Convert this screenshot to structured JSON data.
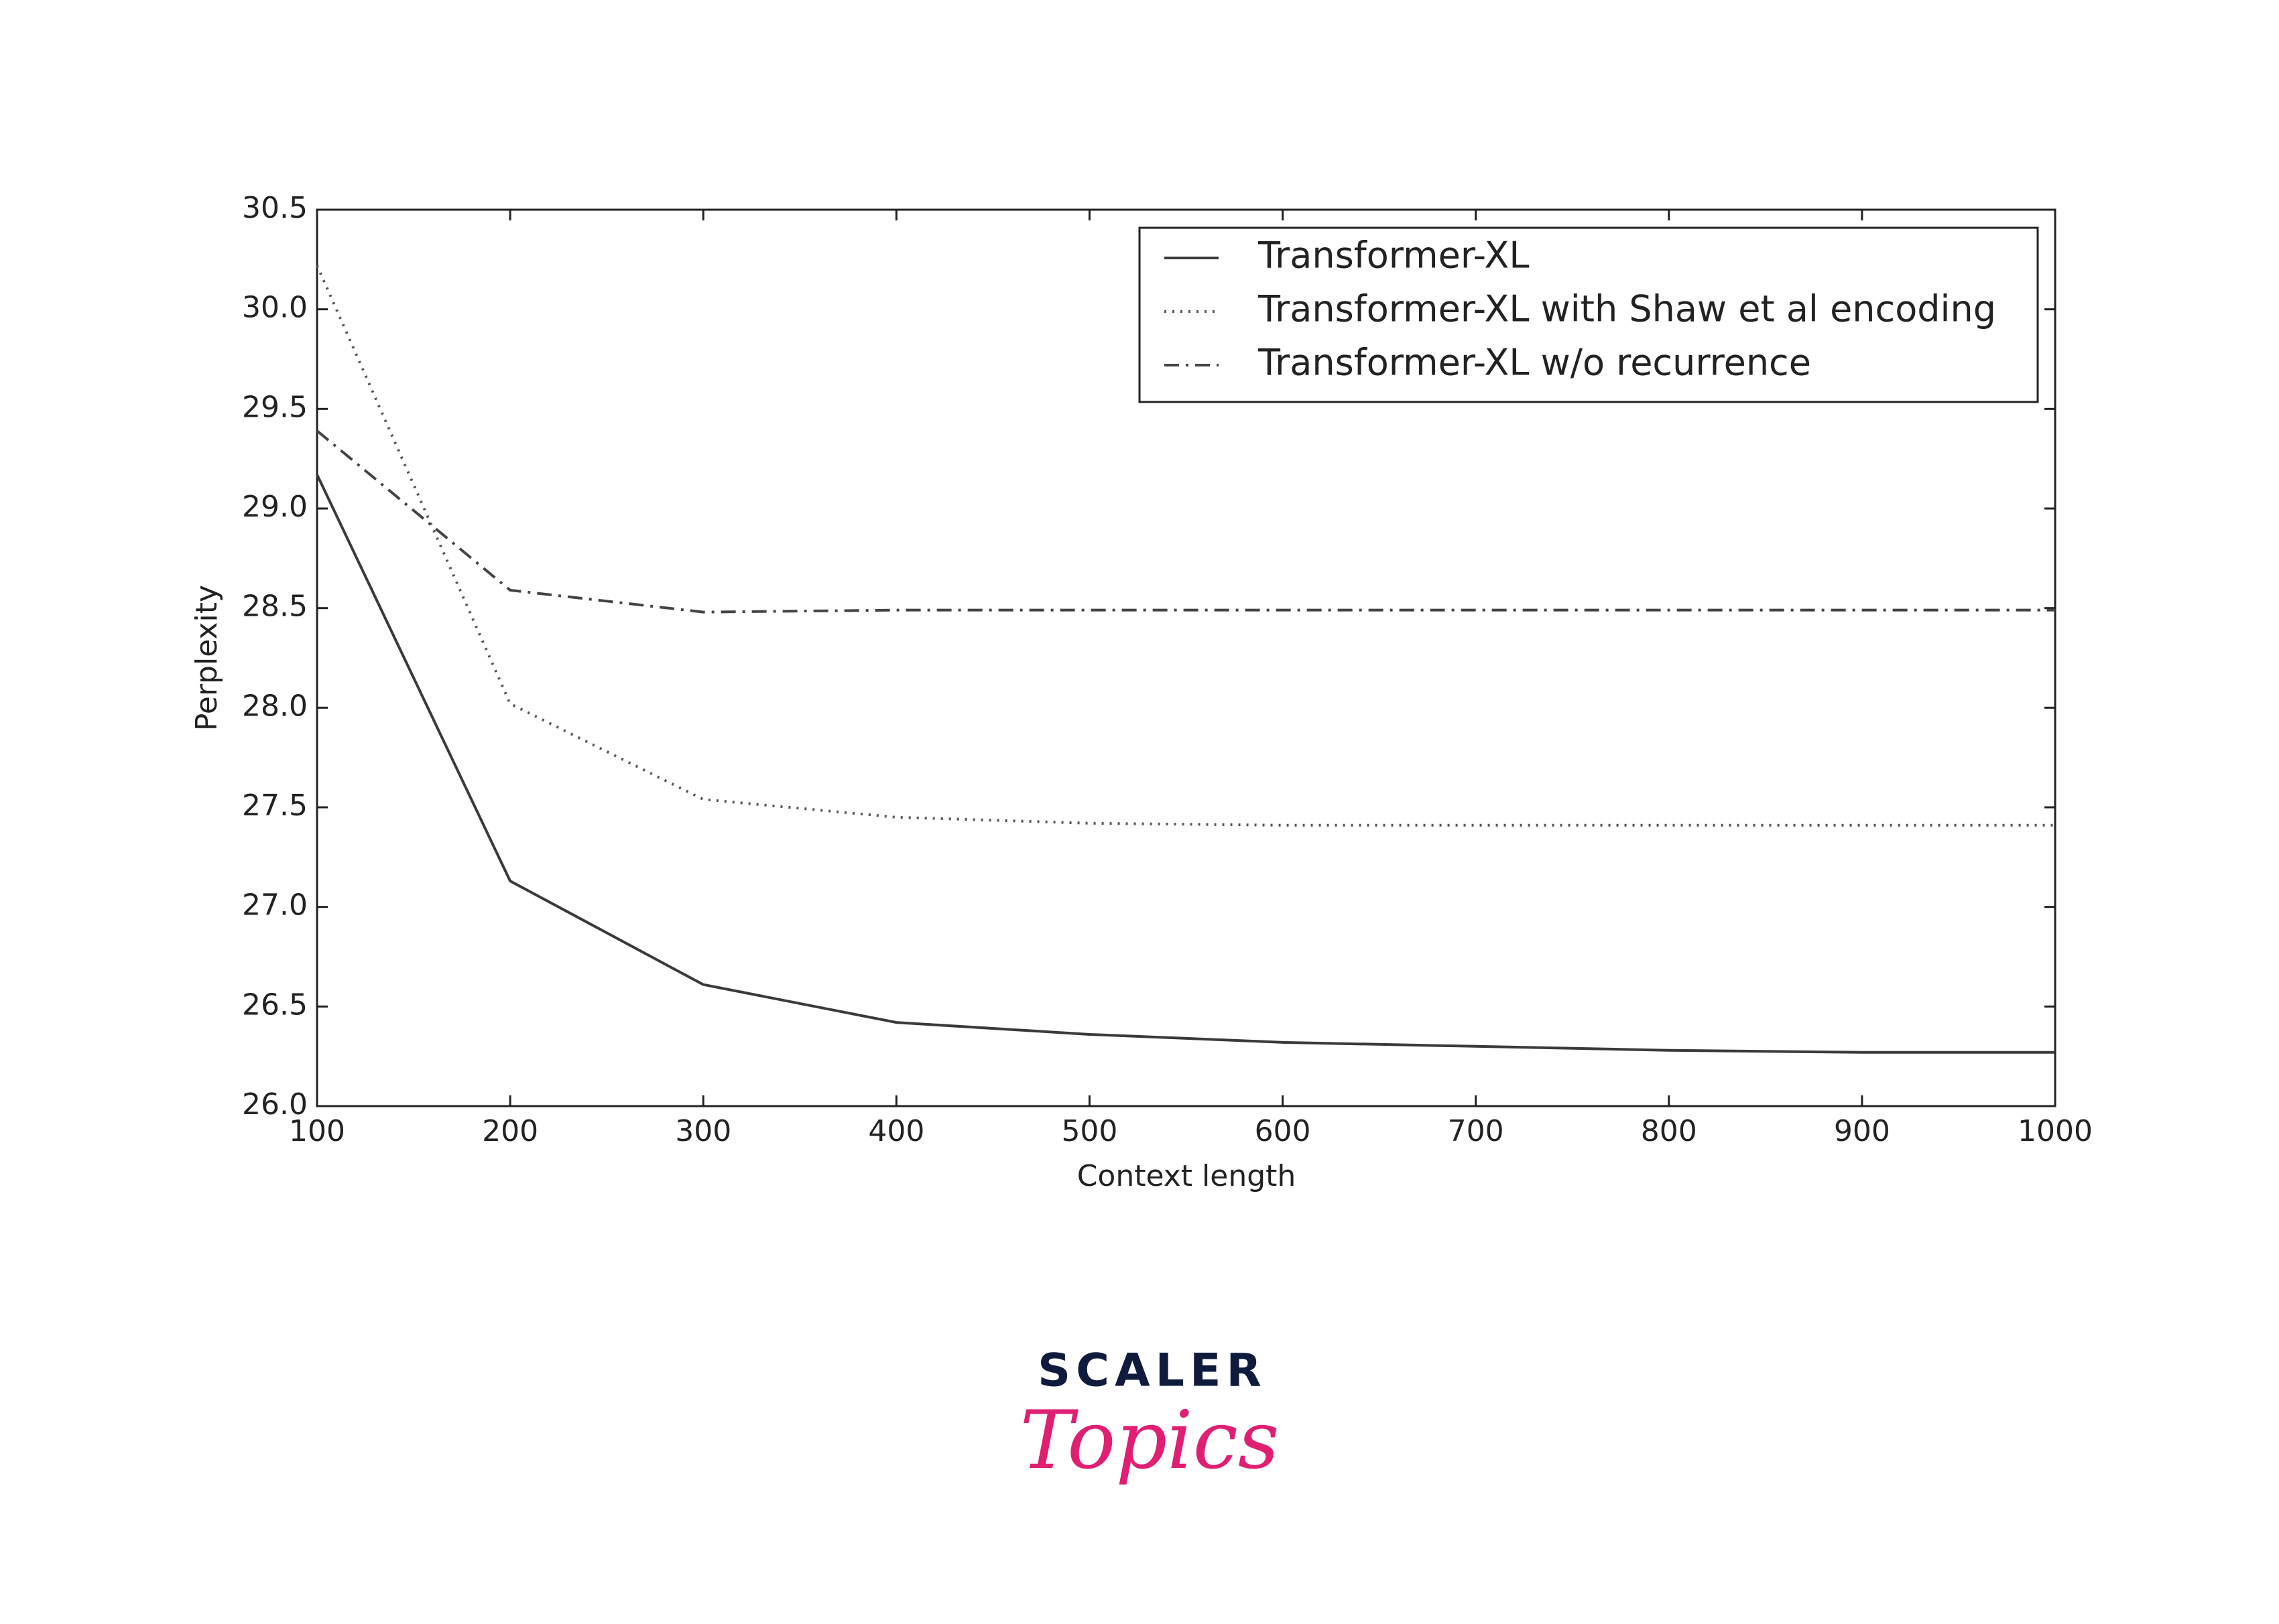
{
  "chart_data": {
    "type": "line",
    "x_label": "Context length",
    "y_label": "Perplexity",
    "x": [
      100,
      200,
      300,
      400,
      500,
      600,
      700,
      800,
      900,
      1000
    ],
    "series": [
      {
        "name": "Transformer-XL",
        "color": "#3a3a3a",
        "style": "solid",
        "values": [
          29.17,
          27.13,
          26.61,
          26.42,
          26.36,
          26.32,
          26.3,
          26.28,
          26.27,
          26.27
        ]
      },
      {
        "name": "Transformer-XL with Shaw et al encoding",
        "color": "#555555",
        "style": "dotted",
        "values": [
          30.22,
          28.02,
          27.54,
          27.45,
          27.42,
          27.41,
          27.41,
          27.41,
          27.41,
          27.41
        ]
      },
      {
        "name": "Transformer-XL w/o recurrence",
        "color": "#444444",
        "style": "dashdot",
        "values": [
          29.39,
          28.59,
          28.48,
          28.49,
          28.49,
          28.49,
          28.49,
          28.49,
          28.49,
          28.49
        ]
      }
    ],
    "xlim": [
      100,
      1000
    ],
    "xticks": [
      100,
      200,
      300,
      400,
      500,
      600,
      700,
      800,
      900,
      1000
    ],
    "ylim": [
      26,
      30.5
    ],
    "yticks": [
      {
        "value": 26,
        "label": "26.0"
      },
      {
        "value": 26.5,
        "label": "26.5"
      },
      {
        "value": 27,
        "label": "27.0"
      },
      {
        "value": 27.5,
        "label": "27.5"
      },
      {
        "value": 28,
        "label": "28.0"
      },
      {
        "value": 28.5,
        "label": "28.5"
      },
      {
        "value": 29,
        "label": "29.0"
      },
      {
        "value": 29.5,
        "label": "29.5"
      },
      {
        "value": 30,
        "label": "30.0"
      },
      {
        "value": 30.5,
        "label": "30.5"
      }
    ],
    "grid": false,
    "legend_position": "upper right"
  },
  "logo": {
    "brand": "SCALER",
    "product": "Topics"
  }
}
